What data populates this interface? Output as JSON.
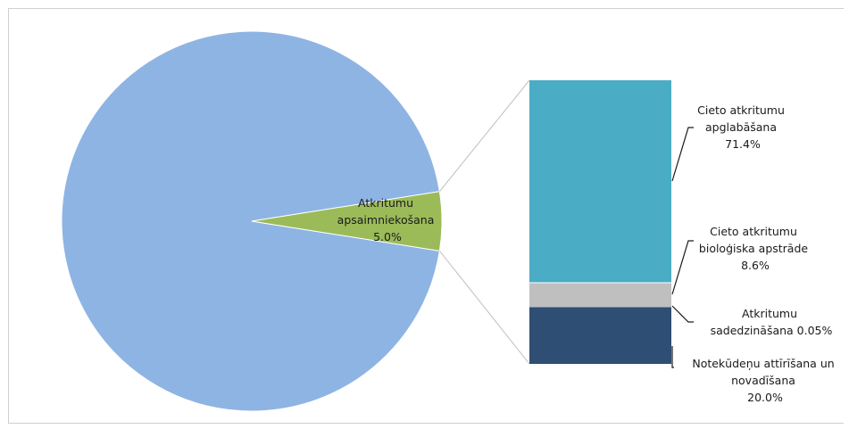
{
  "chart_data": {
    "type": "pie",
    "subtype": "bar-of-pie",
    "pie": {
      "slices": [
        {
          "label": "",
          "value": 95.0,
          "color": "#8EB4E3"
        },
        {
          "label": "Atkritumu apsaimniekošana",
          "value_text": "5.0%",
          "value": 5.0,
          "color": "#9BBB59"
        }
      ]
    },
    "bar": {
      "segments": [
        {
          "label": "Cieto atkritumu apglabāšana",
          "value_text": "71.4%",
          "value": 71.4,
          "color": "#4BACC6"
        },
        {
          "label": "Cieto atkritumu bioloģiska apstrāde",
          "value_text": "8.6%",
          "value": 8.6,
          "color": "#BFBFBF"
        },
        {
          "label": "Atkritumu sadedzināšana",
          "value_text": "0.05%",
          "value": 0.05,
          "color": "#BFBFBF"
        },
        {
          "label": "Notekūdeņu attīrīšana un novadīšana",
          "value_text": "20.0%",
          "value": 20.0,
          "color": "#2E4E73"
        }
      ]
    },
    "labels": {
      "pie_slice": [
        "Atkritumu",
        "apsaimniekošana",
        "5.0%"
      ],
      "seg0": [
        "Cieto atkritumu",
        "apglabāšana",
        "71.4%"
      ],
      "seg1": [
        "Cieto atkritumu",
        "bioloģiska apstrāde",
        "8.6%"
      ],
      "seg2": [
        "Atkritumu",
        "sadedzināšana 0.05%"
      ],
      "seg3": [
        "Notekūdeņu attīrīšana un",
        "novadīšana",
        "20.0%"
      ]
    }
  }
}
